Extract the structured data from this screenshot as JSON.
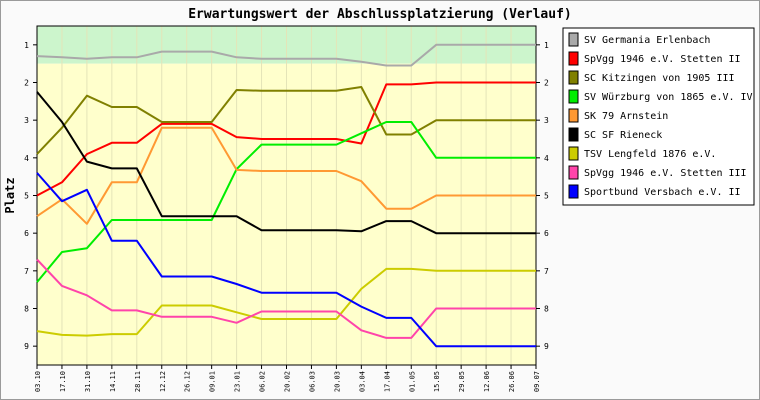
{
  "chart_data": {
    "type": "line",
    "title": "Erwartungswert der Abschlussplatzierung (Verlauf)",
    "ylabel": "Platz",
    "xlabel": "",
    "ylim": [
      0.5,
      9.5
    ],
    "y_inverted": true,
    "y_ticks": [
      "1",
      "2",
      "3",
      "4",
      "5",
      "6",
      "7",
      "8",
      "9"
    ],
    "categories": [
      "03.10",
      "17.10",
      "31.10",
      "14.11",
      "28.11",
      "12.12",
      "26.12",
      "09.01",
      "23.01",
      "06.02",
      "20.02",
      "06.03",
      "20.03",
      "03.04",
      "17.04",
      "01.05",
      "15.05",
      "29.05",
      "12.06",
      "26.06",
      "09.07"
    ],
    "legend_position": "right",
    "zones": [
      {
        "from": 0.5,
        "to": 1.5,
        "color": "#ccf5cc"
      },
      {
        "from": 1.5,
        "to": 9.5,
        "color": "#ffffcc"
      }
    ],
    "series": [
      {
        "name": "SV Germania Erlenbach",
        "color": "#a9a9a9",
        "values": [
          1.3,
          1.33,
          1.37,
          1.33,
          1.33,
          1.18,
          1.18,
          1.18,
          1.33,
          1.37,
          1.37,
          1.37,
          1.37,
          1.45,
          1.55,
          1.55,
          1.0,
          1.0,
          1.0,
          1.0,
          1.0
        ]
      },
      {
        "name": "SpVgg 1946 e.V. Stetten II",
        "color": "#ff0000",
        "values": [
          5.0,
          4.65,
          3.9,
          3.6,
          3.6,
          3.1,
          3.1,
          3.1,
          3.45,
          3.5,
          3.5,
          3.5,
          3.5,
          3.62,
          2.05,
          2.05,
          2.0,
          2.0,
          2.0,
          2.0,
          2.0
        ]
      },
      {
        "name": "SC Kitzingen von 1905 III",
        "color": "#808000",
        "values": [
          3.9,
          3.2,
          2.35,
          2.65,
          2.65,
          3.05,
          3.05,
          3.05,
          2.2,
          2.22,
          2.22,
          2.22,
          2.22,
          2.12,
          3.38,
          3.38,
          3.0,
          3.0,
          3.0,
          3.0,
          3.0
        ]
      },
      {
        "name": "SV Würzburg von 1865 e.V. IV",
        "color": "#00ee00",
        "values": [
          7.3,
          6.5,
          6.4,
          5.65,
          5.65,
          5.65,
          5.65,
          5.65,
          4.3,
          3.65,
          3.65,
          3.65,
          3.65,
          3.35,
          3.05,
          3.05,
          4.0,
          4.0,
          4.0,
          4.0,
          4.0
        ]
      },
      {
        "name": "SK 79 Arnstein",
        "color": "#ff9933",
        "values": [
          5.55,
          5.1,
          5.75,
          4.65,
          4.65,
          3.2,
          3.2,
          3.2,
          4.32,
          4.35,
          4.35,
          4.35,
          4.35,
          4.62,
          5.35,
          5.35,
          5.0,
          5.0,
          5.0,
          5.0,
          5.0
        ]
      },
      {
        "name": "SC SF Rieneck",
        "color": "#000000",
        "values": [
          2.25,
          3.05,
          4.1,
          4.28,
          4.28,
          5.55,
          5.55,
          5.55,
          5.55,
          5.92,
          5.92,
          5.92,
          5.92,
          5.95,
          5.68,
          5.68,
          6.0,
          6.0,
          6.0,
          6.0,
          6.0
        ]
      },
      {
        "name": "TSV Lengfeld 1876 e.V.",
        "color": "#cccc00",
        "values": [
          8.6,
          8.7,
          8.72,
          8.68,
          8.68,
          7.92,
          7.92,
          7.92,
          8.1,
          8.28,
          8.28,
          8.28,
          8.28,
          7.48,
          6.95,
          6.95,
          7.0,
          7.0,
          7.0,
          7.0,
          7.0
        ]
      },
      {
        "name": "SpVgg 1946 e.V. Stetten III",
        "color": "#ff44aa",
        "values": [
          6.7,
          7.4,
          7.65,
          8.05,
          8.05,
          8.22,
          8.22,
          8.22,
          8.38,
          8.08,
          8.08,
          8.08,
          8.08,
          8.58,
          8.78,
          8.78,
          8.0,
          8.0,
          8.0,
          8.0,
          8.0
        ]
      },
      {
        "name": "Sportbund Versbach e.V. II",
        "color": "#0000ff",
        "values": [
          4.4,
          5.15,
          4.85,
          6.2,
          6.2,
          7.15,
          7.15,
          7.15,
          7.35,
          7.58,
          7.58,
          7.58,
          7.58,
          7.95,
          8.25,
          8.25,
          9.0,
          9.0,
          9.0,
          9.0,
          9.0
        ]
      }
    ]
  }
}
